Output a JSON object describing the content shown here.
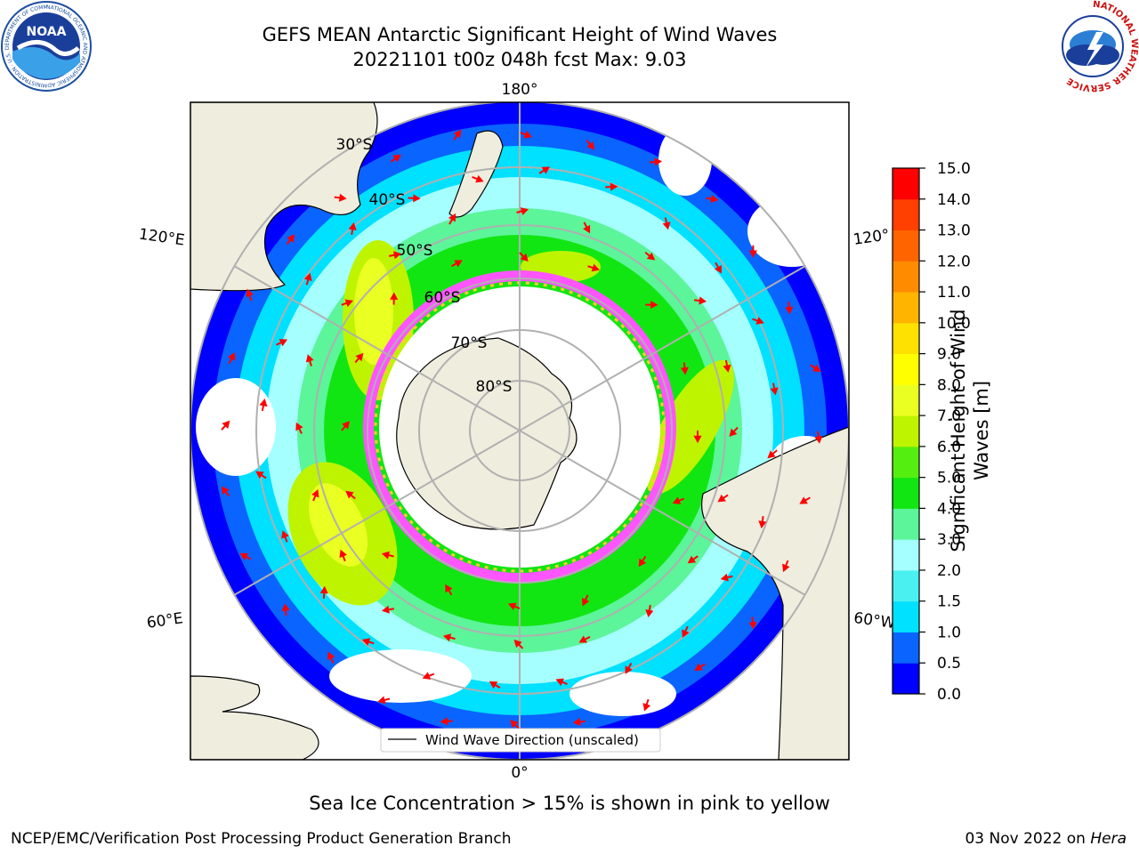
{
  "header": {
    "title_line1": "GEFS MEAN Antarctic Significant Height of Wind Waves",
    "title_line2": "20221101 t00z 048h fcst   Max: 9.03"
  },
  "logos": {
    "left_icon": "noaa-logo",
    "left_text": "NOAA",
    "left_ring_text": "NATIONAL OCEANIC AND ATMOSPHERIC ADMINISTRATION · U.S. DEPARTMENT OF COMMERCE",
    "right_icon": "national-weather-service-logo",
    "right_ring_text": "NATIONAL WEATHER SERVICE"
  },
  "map": {
    "lon_labels": {
      "top": "180°",
      "bottom": "0°",
      "left_upper": "120°E",
      "left_lower": "60°E",
      "right_upper": "120°",
      "right_lower": "60°W"
    },
    "lat_labels": [
      "30°S",
      "40°S",
      "50°S",
      "60°S",
      "70°S",
      "80°S"
    ],
    "legend_label": "Wind Wave Direction (unscaled)",
    "colors": {
      "land": "#efedde",
      "ocean_missing": "#ffffff",
      "grid": "#b0b0b0",
      "arrow": "#ff0000",
      "sea_ice_low": "#ff55ff",
      "sea_ice_high": "#ffcc33"
    }
  },
  "colorbar": {
    "label": "Significant Height of Wind Waves [m]",
    "label_line1": "Significant Height of Wind",
    "label_line2": "Waves [m]",
    "ticks": [
      "0.0",
      "0.5",
      "1.0",
      "1.5",
      "2.0",
      "3.0",
      "4.0",
      "5.0",
      "6.0",
      "7.0",
      "8.0",
      "9.0",
      "10.0",
      "11.0",
      "12.0",
      "13.0",
      "14.0",
      "15.0"
    ],
    "colors": [
      "#0000ff",
      "#0a64ff",
      "#00e0ff",
      "#4af0f0",
      "#a6ffff",
      "#5cf59a",
      "#12e612",
      "#55ee11",
      "#bef400",
      "#eaff22",
      "#ffff00",
      "#ffe100",
      "#ffb400",
      "#ff8c00",
      "#ff6400",
      "#ff4000",
      "#ff0000"
    ]
  },
  "caption": "Sea Ice Concentration > 15% is shown in pink to yellow",
  "footer": {
    "left": "NCEP/EMC/Verification Post Processing Product Generation Branch",
    "right_prefix": "03 Nov 2022 on ",
    "right_machine": "Hera"
  }
}
